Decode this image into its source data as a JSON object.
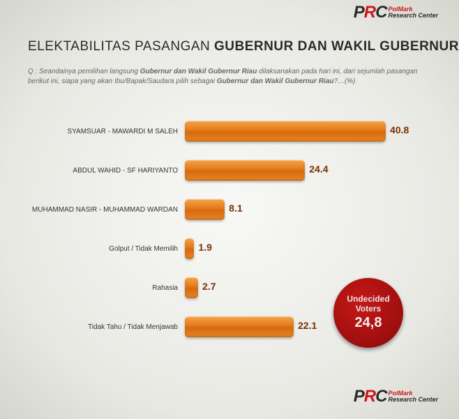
{
  "logo": {
    "prc_p": "P",
    "prc_r": "R",
    "prc_c": "C",
    "sub1": "PolMark",
    "sub2": "Research Center"
  },
  "title_light": "ELEKTABILITAS PASANGAN ",
  "title_bold": "GUBERNUR DAN WAKIL GUBERNUR",
  "question_q": "Q :",
  "question_p1": "Seandainya pemilihan langsung ",
  "question_b1": "Gubernur dan Wakil Gubernur Riau ",
  "question_p2": "dilaksanakan pada hari ini, dari sejumlah pasangan berikut ini, siapa yang akan Ibu/Bapak/Saudara pilih sebagai ",
  "question_b2": "Gubernur dan Wakil Gubernur Riau",
  "question_p3": "?…(%)",
  "chart": {
    "type": "bar-horizontal",
    "max": 50,
    "bar_color": "#e67e1e",
    "value_color": "#7a2f00",
    "rows": [
      {
        "label": "SYAMSUAR - MAWARDI M SALEH",
        "value": 40.8,
        "display": "40.8"
      },
      {
        "label": "ABDUL WAHID - SF HARIYANTO",
        "value": 24.4,
        "display": "24.4"
      },
      {
        "label": "MUHAMMAD NASIR - MUHAMMAD WARDAN",
        "value": 8.1,
        "display": "8.1"
      },
      {
        "label": "Golput / Tidak Memilih",
        "value": 1.9,
        "display": "1.9"
      },
      {
        "label": "Rahasia",
        "value": 2.7,
        "display": "2.7"
      },
      {
        "label": "Tidak Tahu / Tidak Menjawab",
        "value": 22.1,
        "display": "22.1"
      }
    ]
  },
  "badge": {
    "line1": "Undecided",
    "line2": "Voters",
    "value": "24,8",
    "bg": "#9e0e0e"
  }
}
